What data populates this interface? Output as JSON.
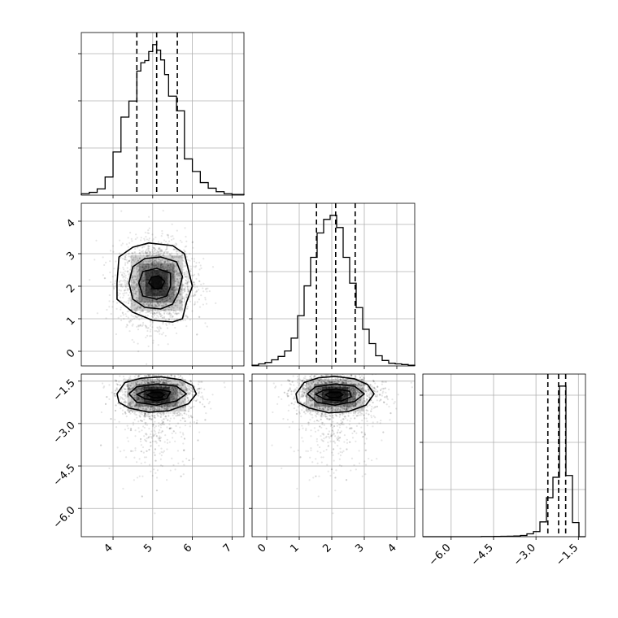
{
  "chart_data": {
    "type": "corner",
    "title": "",
    "parameters": [
      {
        "index": 0,
        "xlim": [
          3.2,
          7.3
        ],
        "ticks": [
          4,
          5,
          6,
          7
        ],
        "tick_labels": [
          "4",
          "5",
          "6",
          "7"
        ],
        "quantiles": [
          4.6,
          5.1,
          5.62
        ],
        "histogram": {
          "edges": [
            3.2,
            3.4,
            3.6,
            3.8,
            4.0,
            4.2,
            4.4,
            4.6,
            4.7,
            4.8,
            4.9,
            5.0,
            5.1,
            5.2,
            5.3,
            5.4,
            5.5,
            5.6,
            5.8,
            6.0,
            6.2,
            6.4,
            6.6,
            6.8,
            7.0,
            7.3
          ],
          "counts": [
            2,
            4,
            9,
            26,
            62,
            112,
            135,
            178,
            190,
            193,
            206,
            216,
            208,
            194,
            173,
            142,
            142,
            121,
            52,
            34,
            18,
            10,
            5,
            2,
            1
          ]
        }
      },
      {
        "index": 1,
        "xlim": [
          -0.45,
          4.55
        ],
        "ticks": [
          0,
          1,
          2,
          3,
          4
        ],
        "tick_labels": [
          "0",
          "1",
          "2",
          "3",
          "4"
        ],
        "quantiles": [
          1.53,
          2.12,
          2.72
        ],
        "histogram": {
          "edges": [
            -0.45,
            -0.25,
            -0.05,
            0.15,
            0.35,
            0.55,
            0.75,
            0.95,
            1.15,
            1.35,
            1.55,
            1.75,
            1.95,
            2.15,
            2.35,
            2.55,
            2.75,
            2.95,
            3.15,
            3.35,
            3.55,
            3.75,
            3.95,
            4.15,
            4.35,
            4.55
          ],
          "counts": [
            1,
            3,
            5,
            9,
            14,
            22,
            41,
            74,
            118,
            160,
            196,
            216,
            222,
            204,
            160,
            122,
            86,
            54,
            33,
            15,
            8,
            4,
            3,
            2,
            1
          ]
        }
      },
      {
        "index": 2,
        "xlim": [
          -7.0,
          -1.25
        ],
        "ticks": [
          -6.0,
          -4.5,
          -3.0,
          -1.5
        ],
        "tick_labels": [
          "−6.0",
          "−4.5",
          "−3.0",
          "−1.5"
        ],
        "quantiles": [
          -2.58,
          -2.2,
          -1.95
        ],
        "histogram": {
          "edges": [
            -7.0,
            -6.77,
            -6.54,
            -6.31,
            -6.08,
            -5.85,
            -5.62,
            -5.39,
            -5.16,
            -4.93,
            -4.7,
            -4.47,
            -4.24,
            -4.01,
            -3.78,
            -3.55,
            -3.32,
            -3.09,
            -2.86,
            -2.63,
            -2.4,
            -2.17,
            -1.94,
            -1.71,
            -1.48,
            -1.25
          ],
          "counts": [
            0,
            0,
            0,
            0,
            0,
            0,
            0,
            0,
            0,
            1,
            1,
            2,
            3,
            4,
            5,
            9,
            21,
            38,
            110,
            290,
            442,
            1120,
            455,
            105,
            0
          ]
        }
      }
    ],
    "pairs": [
      {
        "x_param": 0,
        "y_param": 1,
        "center": [
          5.1,
          2.1
        ],
        "std": [
          0.45,
          0.62
        ],
        "contours": [
          [
            [
              4.1,
              2.1
            ],
            [
              4.15,
              2.9
            ],
            [
              4.5,
              3.2
            ],
            [
              4.9,
              3.33
            ],
            [
              5.5,
              3.25
            ],
            [
              5.8,
              3.0
            ],
            [
              5.9,
              2.5
            ],
            [
              6.0,
              2.0
            ],
            [
              5.85,
              1.5
            ],
            [
              5.75,
              1.0
            ],
            [
              5.5,
              0.9
            ],
            [
              5.0,
              0.95
            ],
            [
              4.5,
              1.2
            ],
            [
              4.1,
              1.6
            ]
          ],
          [
            [
              4.4,
              2.1
            ],
            [
              4.5,
              2.6
            ],
            [
              4.8,
              2.85
            ],
            [
              5.2,
              2.9
            ],
            [
              5.6,
              2.75
            ],
            [
              5.75,
              2.3
            ],
            [
              5.65,
              1.8
            ],
            [
              5.5,
              1.45
            ],
            [
              5.2,
              1.3
            ],
            [
              4.8,
              1.35
            ],
            [
              4.5,
              1.6
            ]
          ],
          [
            [
              4.65,
              2.1
            ],
            [
              4.75,
              2.45
            ],
            [
              5.1,
              2.55
            ],
            [
              5.45,
              2.4
            ],
            [
              5.45,
              2.0
            ],
            [
              5.35,
              1.7
            ],
            [
              5.1,
              1.6
            ],
            [
              4.75,
              1.7
            ]
          ],
          [
            [
              4.9,
              2.1
            ],
            [
              4.97,
              2.28
            ],
            [
              5.15,
              2.32
            ],
            [
              5.3,
              2.15
            ],
            [
              5.22,
              1.95
            ],
            [
              5.05,
              1.92
            ]
          ]
        ]
      },
      {
        "x_param": 0,
        "y_param": 2,
        "center": [
          5.1,
          -2.0
        ],
        "std": [
          0.45,
          0.35
        ],
        "contours": [
          [
            [
              4.1,
              -1.95
            ],
            [
              4.3,
              -1.55
            ],
            [
              4.7,
              -1.4
            ],
            [
              5.2,
              -1.35
            ],
            [
              5.7,
              -1.45
            ],
            [
              6.0,
              -1.65
            ],
            [
              6.1,
              -1.95
            ],
            [
              5.9,
              -2.3
            ],
            [
              5.4,
              -2.55
            ],
            [
              4.9,
              -2.6
            ],
            [
              4.4,
              -2.45
            ],
            [
              4.15,
              -2.25
            ]
          ],
          [
            [
              4.4,
              -1.95
            ],
            [
              4.6,
              -1.7
            ],
            [
              5.1,
              -1.6
            ],
            [
              5.6,
              -1.68
            ],
            [
              5.85,
              -1.95
            ],
            [
              5.6,
              -2.2
            ],
            [
              5.1,
              -2.35
            ],
            [
              4.6,
              -2.25
            ]
          ],
          [
            [
              4.6,
              -1.97
            ],
            [
              4.85,
              -1.83
            ],
            [
              5.2,
              -1.8
            ],
            [
              5.45,
              -1.88
            ],
            [
              5.35,
              -2.12
            ],
            [
              5.1,
              -2.2
            ],
            [
              4.8,
              -2.12
            ]
          ],
          [
            [
              4.85,
              -1.98
            ],
            [
              5.0,
              -1.9
            ],
            [
              5.2,
              -1.9
            ],
            [
              5.3,
              -1.98
            ],
            [
              5.2,
              -2.08
            ],
            [
              5.0,
              -2.08
            ]
          ]
        ]
      },
      {
        "x_param": 1,
        "y_param": 2,
        "center": [
          2.1,
          -2.0
        ],
        "std": [
          0.62,
          0.35
        ],
        "contours": [
          [
            [
              0.9,
              -1.95
            ],
            [
              1.15,
              -1.55
            ],
            [
              1.6,
              -1.38
            ],
            [
              2.1,
              -1.33
            ],
            [
              2.7,
              -1.42
            ],
            [
              3.1,
              -1.62
            ],
            [
              3.3,
              -1.95
            ],
            [
              3.05,
              -2.35
            ],
            [
              2.5,
              -2.58
            ],
            [
              1.9,
              -2.62
            ],
            [
              1.3,
              -2.45
            ],
            [
              0.95,
              -2.25
            ]
          ],
          [
            [
              1.25,
              -1.95
            ],
            [
              1.5,
              -1.7
            ],
            [
              2.1,
              -1.6
            ],
            [
              2.7,
              -1.68
            ],
            [
              3.0,
              -1.95
            ],
            [
              2.7,
              -2.22
            ],
            [
              2.1,
              -2.35
            ],
            [
              1.55,
              -2.25
            ]
          ],
          [
            [
              1.5,
              -1.97
            ],
            [
              1.75,
              -1.82
            ],
            [
              2.15,
              -1.78
            ],
            [
              2.55,
              -1.86
            ],
            [
              2.6,
              -2.05
            ],
            [
              2.3,
              -2.2
            ],
            [
              1.8,
              -2.15
            ]
          ],
          [
            [
              1.8,
              -1.98
            ],
            [
              1.95,
              -1.9
            ],
            [
              2.25,
              -1.9
            ],
            [
              2.35,
              -1.98
            ],
            [
              2.2,
              -2.08
            ],
            [
              1.95,
              -2.08
            ]
          ]
        ]
      }
    ],
    "grid": true,
    "legend": "none",
    "colors": {
      "line": "#000000",
      "grid": "#b0b0b0",
      "density": "#000000",
      "background": "#ffffff"
    }
  }
}
